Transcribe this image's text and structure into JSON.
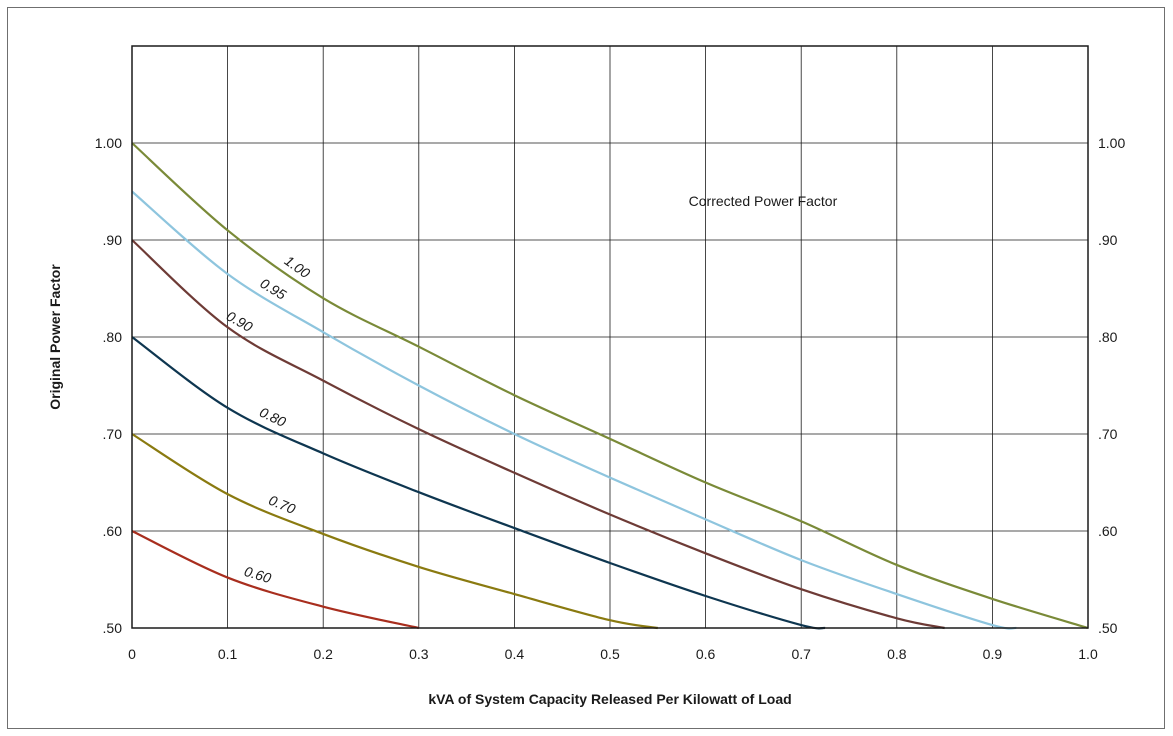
{
  "chart_data": {
    "type": "line",
    "title": "",
    "xlabel": "kVA of System Capacity Released Per Kilowatt of Load",
    "ylabel": "Original Power Factor",
    "annotation": "Corrected Power Factor",
    "xlim": [
      0,
      1.0
    ],
    "ylim": [
      0.5,
      1.1
    ],
    "grid": true,
    "right_axis": true,
    "x_ticks": [
      "0",
      "0.1",
      "0.2",
      "0.3",
      "0.4",
      "0.5",
      "0.6",
      "0.7",
      "0.8",
      "0.9",
      "1.0"
    ],
    "y_ticks": [
      {
        "value": 0.5,
        "label": ".50"
      },
      {
        "value": 0.6,
        "label": ".60"
      },
      {
        "value": 0.7,
        "label": ".70"
      },
      {
        "value": 0.8,
        "label": ".80"
      },
      {
        "value": 0.9,
        "label": ".90"
      },
      {
        "value": 1.0,
        "label": "1.00"
      }
    ],
    "series": [
      {
        "name": "1.00",
        "color": "#7a8a38",
        "points": [
          [
            0,
            1.0
          ],
          [
            0.1,
            0.91
          ],
          [
            0.2,
            0.84
          ],
          [
            0.3,
            0.79
          ],
          [
            0.4,
            0.74
          ],
          [
            0.5,
            0.695
          ],
          [
            0.6,
            0.65
          ],
          [
            0.7,
            0.61
          ],
          [
            0.8,
            0.565
          ],
          [
            0.9,
            0.53
          ],
          [
            1.0,
            0.5
          ]
        ]
      },
      {
        "name": "0.95",
        "color": "#8ec5de",
        "points": [
          [
            0,
            0.95
          ],
          [
            0.1,
            0.865
          ],
          [
            0.2,
            0.805
          ],
          [
            0.3,
            0.75
          ],
          [
            0.4,
            0.7
          ],
          [
            0.5,
            0.655
          ],
          [
            0.6,
            0.612
          ],
          [
            0.7,
            0.57
          ],
          [
            0.8,
            0.535
          ],
          [
            0.9,
            0.503
          ],
          [
            0.925,
            0.5
          ]
        ]
      },
      {
        "name": "0.90",
        "color": "#6e3b36",
        "points": [
          [
            0,
            0.9
          ],
          [
            0.1,
            0.81
          ],
          [
            0.2,
            0.755
          ],
          [
            0.3,
            0.705
          ],
          [
            0.4,
            0.66
          ],
          [
            0.5,
            0.617
          ],
          [
            0.6,
            0.577
          ],
          [
            0.7,
            0.54
          ],
          [
            0.8,
            0.51
          ],
          [
            0.85,
            0.5
          ]
        ]
      },
      {
        "name": "0.80",
        "color": "#0e3650",
        "points": [
          [
            0,
            0.8
          ],
          [
            0.1,
            0.727
          ],
          [
            0.2,
            0.68
          ],
          [
            0.3,
            0.64
          ],
          [
            0.4,
            0.603
          ],
          [
            0.5,
            0.567
          ],
          [
            0.6,
            0.533
          ],
          [
            0.7,
            0.503
          ],
          [
            0.725,
            0.5
          ]
        ]
      },
      {
        "name": "0.70",
        "color": "#8a7a10",
        "points": [
          [
            0,
            0.7
          ],
          [
            0.1,
            0.638
          ],
          [
            0.2,
            0.597
          ],
          [
            0.3,
            0.563
          ],
          [
            0.4,
            0.535
          ],
          [
            0.5,
            0.508
          ],
          [
            0.55,
            0.5
          ]
        ]
      },
      {
        "name": "0.60",
        "color": "#a82e1e",
        "points": [
          [
            0,
            0.6
          ],
          [
            0.1,
            0.552
          ],
          [
            0.2,
            0.522
          ],
          [
            0.3,
            0.5
          ]
        ]
      }
    ]
  }
}
